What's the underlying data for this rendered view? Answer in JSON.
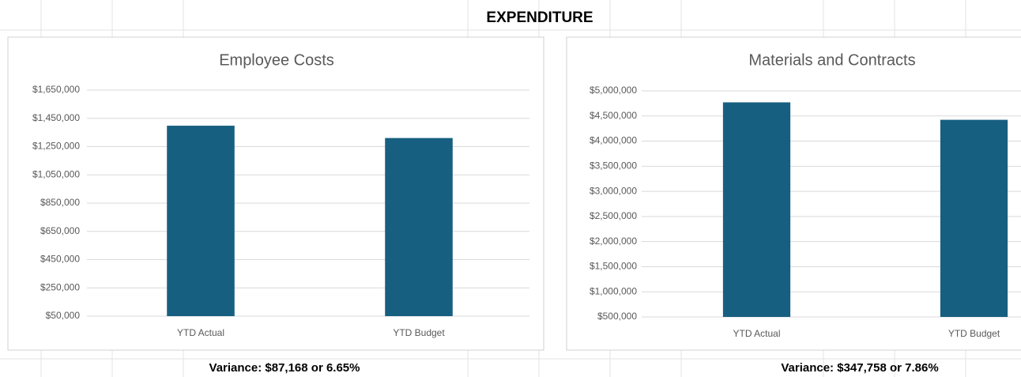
{
  "heading": "EXPENDITURE",
  "variance": [
    "Variance:  $87,168 or 6.65%",
    "Variance: $347,758 or 7.86%"
  ],
  "chart_data": [
    {
      "type": "bar",
      "title": "Employee Costs",
      "categories": [
        "YTD Actual",
        "YTD Budget"
      ],
      "values": [
        1397965,
        1310797
      ],
      "color": "#175f80",
      "grid": true,
      "ylim": [
        50000,
        1650000
      ],
      "yticks": [
        {
          "value": 50000,
          "label": "$50,000"
        },
        {
          "value": 250000,
          "label": "$250,000"
        },
        {
          "value": 450000,
          "label": "$450,000"
        },
        {
          "value": 650000,
          "label": "$650,000"
        },
        {
          "value": 850000,
          "label": "$850,000"
        },
        {
          "value": 1050000,
          "label": "$1,050,000"
        },
        {
          "value": 1250000,
          "label": "$1,250,000"
        },
        {
          "value": 1450000,
          "label": "$1,450,000"
        },
        {
          "value": 1650000,
          "label": "$1,650,000"
        }
      ]
    },
    {
      "type": "bar",
      "title": "Materials and Contracts",
      "categories": [
        "YTD Actual",
        "YTD Budget"
      ],
      "values": [
        4772160,
        4424402
      ],
      "color": "#175f80",
      "grid": true,
      "ylim": [
        500000,
        5000000
      ],
      "yticks": [
        {
          "value": 500000,
          "label": "$500,000"
        },
        {
          "value": 1000000,
          "label": "$1,000,000"
        },
        {
          "value": 1500000,
          "label": "$1,500,000"
        },
        {
          "value": 2000000,
          "label": "$2,000,000"
        },
        {
          "value": 2500000,
          "label": "$2,500,000"
        },
        {
          "value": 3000000,
          "label": "$3,000,000"
        },
        {
          "value": 3500000,
          "label": "$3,500,000"
        },
        {
          "value": 4000000,
          "label": "$4,000,000"
        },
        {
          "value": 4500000,
          "label": "$4,500,000"
        },
        {
          "value": 5000000,
          "label": "$5,000,000"
        }
      ]
    }
  ]
}
